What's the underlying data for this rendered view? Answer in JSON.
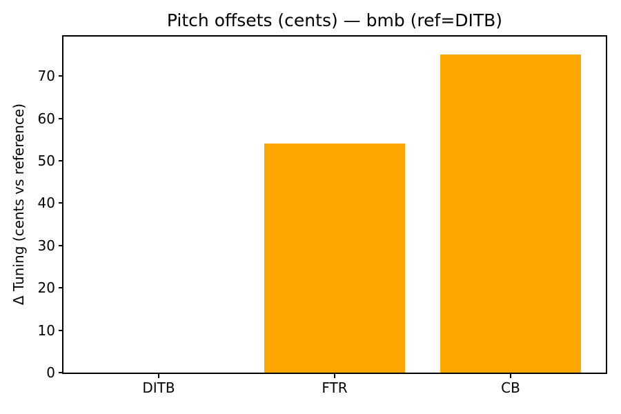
{
  "chart_data": {
    "type": "bar",
    "title": "Pitch offsets (cents) — bmb (ref=DITB)",
    "xlabel": "",
    "ylabel": "Δ Tuning (cents vs reference)",
    "categories": [
      "DITB",
      "FTR",
      "CB"
    ],
    "values": [
      0,
      54,
      75
    ],
    "yticks": [
      0,
      10,
      20,
      30,
      40,
      50,
      60,
      70
    ],
    "ylim": [
      0,
      79.3
    ],
    "bar_color": "#FFA500",
    "axis_color": "#000000",
    "background_color": "#FFFFFF",
    "grid": false,
    "legend": false
  }
}
